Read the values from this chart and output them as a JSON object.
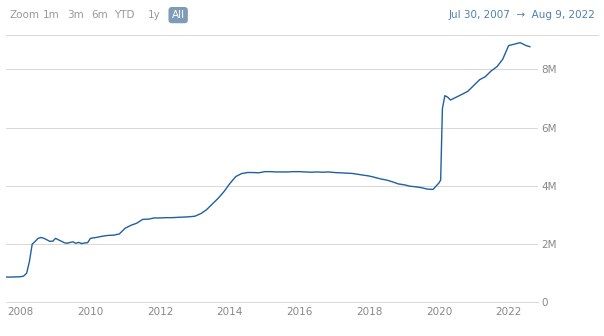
{
  "line_color": "#2060a0",
  "background_color": "#ffffff",
  "grid_color": "#d8d8d8",
  "text_color": "#888888",
  "header_text_color": "#999999",
  "header_blue_color": "#5080b0",
  "xlim": [
    2007.58,
    2022.83
  ],
  "ylim": [
    0,
    9000000
  ],
  "ytick_labels": [
    "0",
    "2M",
    "4M",
    "6M",
    "8M"
  ],
  "ytick_values": [
    0,
    2000000,
    4000000,
    6000000,
    8000000
  ],
  "xtick_labels": [
    "2008",
    "2010",
    "2012",
    "2014",
    "2016",
    "2018",
    "2020",
    "2022"
  ],
  "xtick_values": [
    2008,
    2010,
    2012,
    2014,
    2016,
    2018,
    2020,
    2022
  ],
  "zoom_labels": [
    "Zoom",
    "1m",
    "3m",
    "6m",
    "YTD",
    "1y",
    "All"
  ],
  "zoom_active": "All",
  "date_range": "Jul 30, 2007  →  Aug 9, 2022",
  "data_x": [
    2007.58,
    2007.67,
    2007.75,
    2007.83,
    2007.92,
    2008.0,
    2008.08,
    2008.17,
    2008.25,
    2008.33,
    2008.42,
    2008.5,
    2008.58,
    2008.67,
    2008.75,
    2008.83,
    2008.92,
    2009.0,
    2009.08,
    2009.17,
    2009.25,
    2009.33,
    2009.42,
    2009.5,
    2009.58,
    2009.67,
    2009.75,
    2009.83,
    2009.92,
    2010.0,
    2010.17,
    2010.33,
    2010.5,
    2010.67,
    2010.83,
    2011.0,
    2011.17,
    2011.33,
    2011.5,
    2011.67,
    2011.83,
    2012.0,
    2012.17,
    2012.33,
    2012.5,
    2012.67,
    2012.83,
    2013.0,
    2013.17,
    2013.33,
    2013.5,
    2013.67,
    2013.83,
    2014.0,
    2014.17,
    2014.33,
    2014.5,
    2014.67,
    2014.83,
    2015.0,
    2015.17,
    2015.33,
    2015.5,
    2015.67,
    2015.83,
    2016.0,
    2016.17,
    2016.33,
    2016.5,
    2016.67,
    2016.83,
    2017.0,
    2017.17,
    2017.33,
    2017.5,
    2017.67,
    2017.83,
    2018.0,
    2018.17,
    2018.33,
    2018.5,
    2018.67,
    2018.83,
    2019.0,
    2019.17,
    2019.33,
    2019.5,
    2019.67,
    2019.83,
    2020.0,
    2020.05,
    2020.1,
    2020.17,
    2020.25,
    2020.33,
    2020.5,
    2020.67,
    2020.83,
    2021.0,
    2021.17,
    2021.33,
    2021.5,
    2021.67,
    2021.83,
    2022.0,
    2022.17,
    2022.33,
    2022.5,
    2022.61
  ],
  "data_y": [
    870000,
    870000,
    870000,
    875000,
    878000,
    882000,
    900000,
    1000000,
    1400000,
    2000000,
    2100000,
    2200000,
    2230000,
    2200000,
    2150000,
    2100000,
    2100000,
    2200000,
    2150000,
    2100000,
    2050000,
    2030000,
    2060000,
    2080000,
    2030000,
    2060000,
    2020000,
    2040000,
    2050000,
    2200000,
    2230000,
    2270000,
    2300000,
    2310000,
    2350000,
    2550000,
    2650000,
    2720000,
    2850000,
    2860000,
    2900000,
    2900000,
    2910000,
    2910000,
    2920000,
    2930000,
    2940000,
    2960000,
    3050000,
    3180000,
    3380000,
    3580000,
    3800000,
    4080000,
    4320000,
    4420000,
    4460000,
    4460000,
    4450000,
    4490000,
    4490000,
    4480000,
    4480000,
    4480000,
    4490000,
    4490000,
    4480000,
    4470000,
    4480000,
    4470000,
    4480000,
    4460000,
    4450000,
    4440000,
    4430000,
    4400000,
    4370000,
    4340000,
    4290000,
    4240000,
    4200000,
    4140000,
    4070000,
    4040000,
    3990000,
    3970000,
    3940000,
    3890000,
    3880000,
    4100000,
    4200000,
    6650000,
    7100000,
    7050000,
    6950000,
    7050000,
    7150000,
    7250000,
    7450000,
    7650000,
    7750000,
    7950000,
    8100000,
    8350000,
    8820000,
    8870000,
    8920000,
    8820000,
    8780000
  ]
}
